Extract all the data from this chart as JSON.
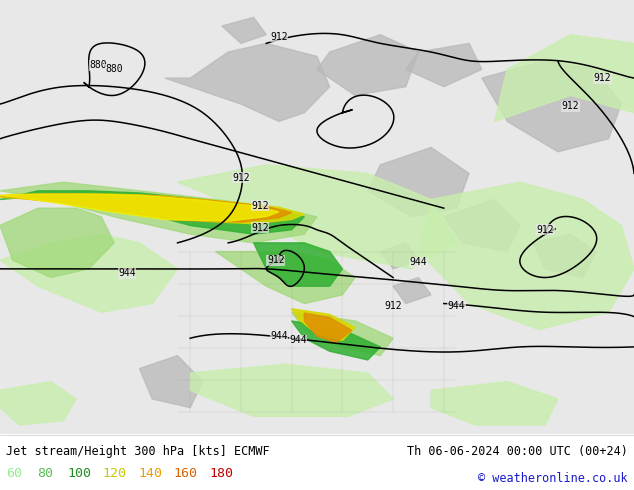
{
  "title_left": "Jet stream/Height 300 hPa [kts] ECMWF",
  "title_right": "Th 06-06-2024 00:00 UTC (00+24)",
  "copyright": "© weatheronline.co.uk",
  "legend_values": [
    "60",
    "80",
    "100",
    "120",
    "140",
    "160",
    "180"
  ],
  "legend_colors": [
    "#90ee90",
    "#5abf5a",
    "#228b22",
    "#c8c800",
    "#e8a000",
    "#e06000",
    "#c00000"
  ],
  "bg_color": "#e8e8e8",
  "land_gray": "#c0c0c0",
  "map_bg": "#ebebeb",
  "contour_color": "#000000",
  "contour_lw": 1.1,
  "contour_label_size": 7,
  "fig_width": 6.34,
  "fig_height": 4.9,
  "dpi": 100,
  "jet_color_60": "#c0f0a0",
  "jet_color_80": "#90e060",
  "jet_color_100": "#30b030",
  "jet_color_120": "#d0d000",
  "jet_color_140": "#e8a000",
  "jet_color_160": "#e05000",
  "jet_color_180": "#c00000"
}
